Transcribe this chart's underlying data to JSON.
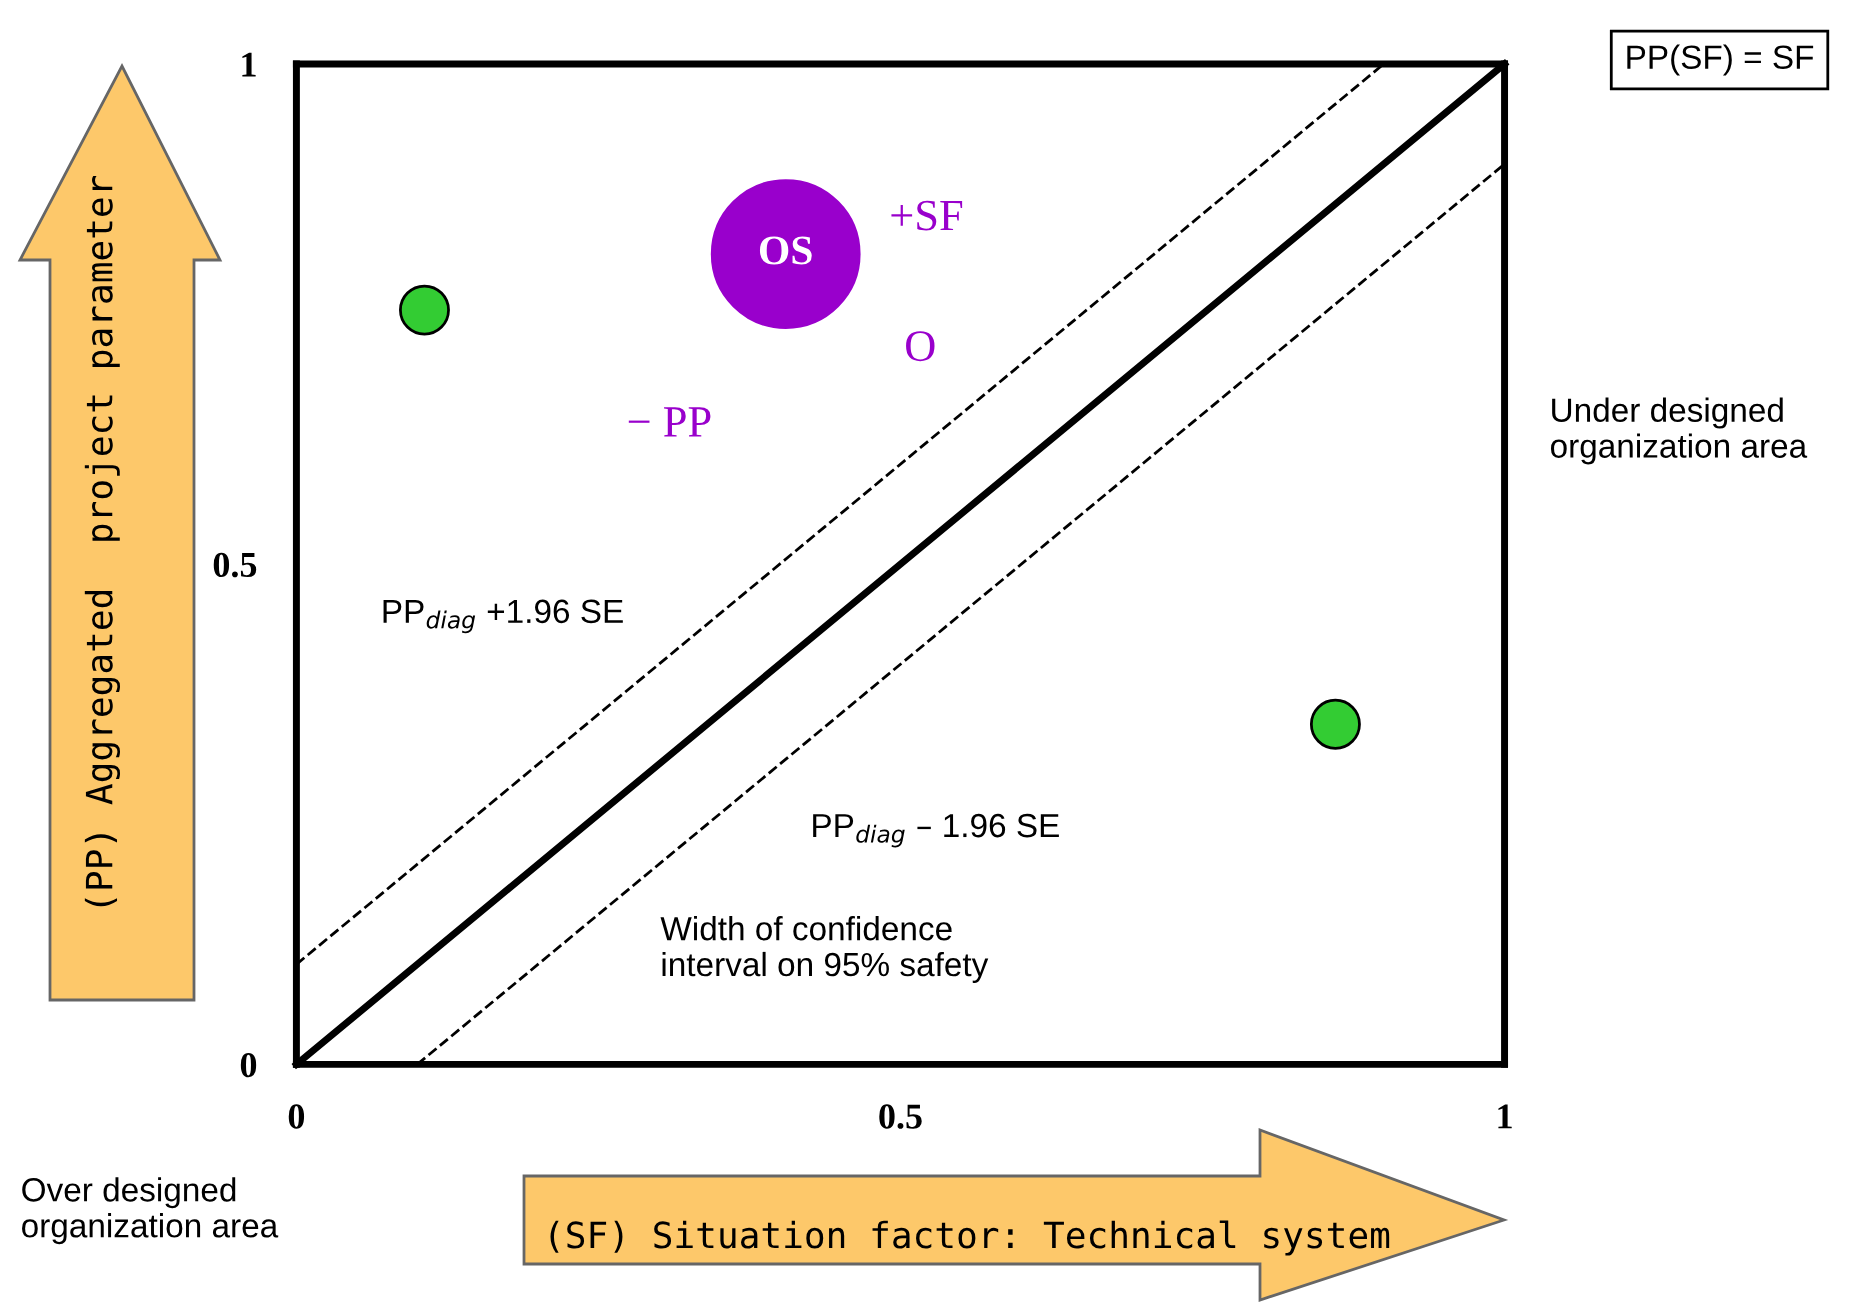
{
  "chart_data": {
    "type": "scatter",
    "xlabel": "(SF) Situation factor: Technical system",
    "ylabel": "(PP) Aggregated  project parameter",
    "xlim": [
      0,
      1
    ],
    "ylim": [
      0,
      1
    ],
    "xticks": [
      0,
      0.5,
      1
    ],
    "yticks": [
      0,
      0.5,
      1
    ],
    "grid": false,
    "legend": false,
    "series": [
      {
        "type": "line",
        "x": [
          0,
          1
        ],
        "values": [
          0,
          1
        ],
        "color": "#000000",
        "line_style": "solid",
        "marker": "none"
      },
      {
        "type": "line",
        "x": [
          0,
          0.9
        ],
        "values": [
          0.1,
          1
        ],
        "color": "#000000",
        "line_style": "dashed",
        "marker": "none"
      },
      {
        "type": "line",
        "x": [
          0.1,
          1
        ],
        "values": [
          0,
          0.9
        ],
        "color": "#000000",
        "line_style": "dashed",
        "marker": "none"
      },
      {
        "type": "scatter",
        "x": [
          0.106,
          0.86
        ],
        "values": [
          0.754,
          0.34
        ],
        "color": "#33cc33",
        "marker": "circle"
      },
      {
        "type": "scatter",
        "name": "OS",
        "x": [
          0.405
        ],
        "values": [
          0.81
        ],
        "color": "#9900cc",
        "marker": "circle"
      }
    ],
    "annotations": [
      "PP(SF) = SF",
      "+SF",
      "O",
      "− PP",
      "Under designed\norganization area",
      "PP$_{diag}$ +1.96 SE",
      "PP$_{diag}$ – 1.96 SE",
      "Width of confidence\ninterval on 95% safety",
      "Over designed\norganization area"
    ]
  }
}
